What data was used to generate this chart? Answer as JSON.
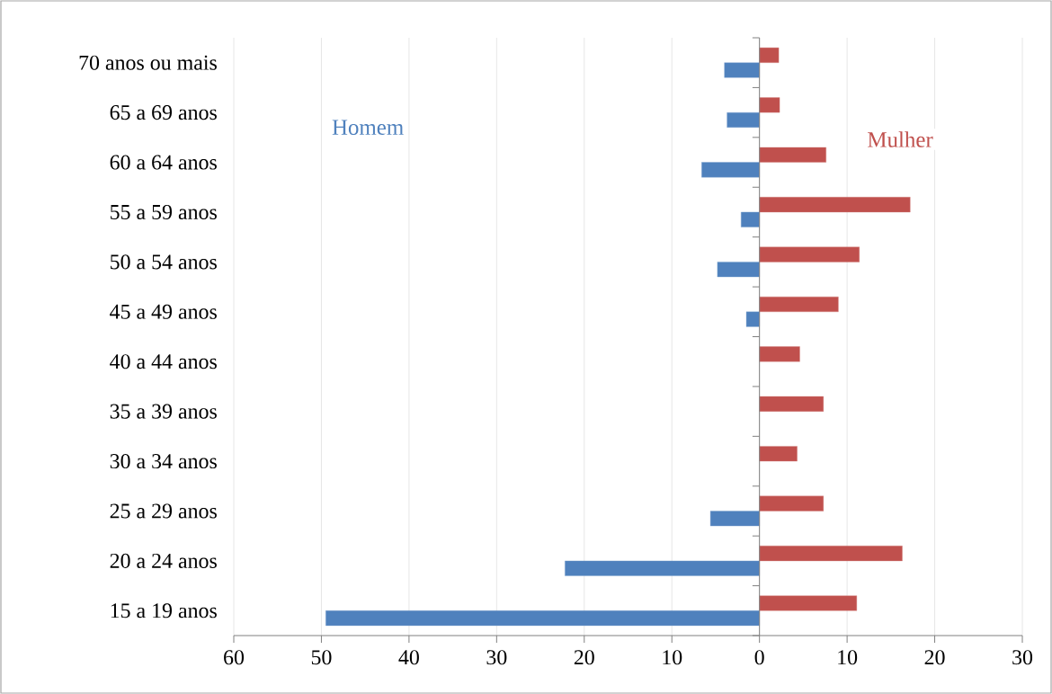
{
  "chart_data": {
    "type": "bar",
    "orientation": "horizontal",
    "categories": [
      "70 anos ou mais",
      "65 a 69 anos",
      "60 a 64 anos",
      "55 a 59 anos",
      "50 a 54 anos",
      "45 a 49 anos",
      "40 a 44 anos",
      "35 a 39 anos",
      "30 a 34 anos",
      "25 a 29 anos",
      "20 a 24 anos",
      "15 a 19 anos"
    ],
    "series": [
      {
        "name": "Homem",
        "color": "#4f81bd",
        "values": [
          -4.0,
          -3.7,
          -6.6,
          -2.1,
          -4.8,
          -1.5,
          null,
          null,
          null,
          -5.6,
          -22.2,
          -49.5
        ]
      },
      {
        "name": "Mulher",
        "color": "#c0504d",
        "values": [
          2.2,
          2.3,
          7.6,
          17.2,
          11.4,
          9.0,
          4.6,
          7.3,
          4.3,
          7.3,
          16.3,
          11.1
        ]
      }
    ],
    "xlim": [
      -60,
      30
    ],
    "xticks": [
      {
        "value": -60,
        "label": "60"
      },
      {
        "value": -50,
        "label": "50"
      },
      {
        "value": -40,
        "label": "40"
      },
      {
        "value": -30,
        "label": "30"
      },
      {
        "value": -20,
        "label": "20"
      },
      {
        "value": -10,
        "label": "10"
      },
      0,
      10,
      20,
      30
    ],
    "grid": "x"
  }
}
